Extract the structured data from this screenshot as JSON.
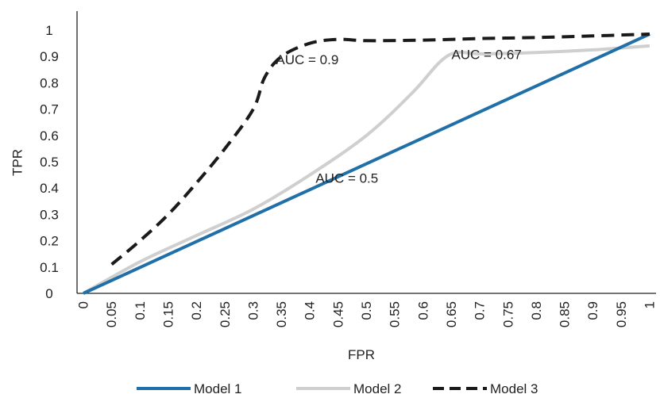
{
  "chart_data": {
    "type": "line",
    "title": "",
    "xlabel": "FPR",
    "ylabel": "TPR",
    "x_ticks": [
      "0",
      "0.05",
      "0.1",
      "0.15",
      "0.2",
      "0.25",
      "0.3",
      "0.35",
      "0.4",
      "0.45",
      "0.5",
      "0.55",
      "0.6",
      "0.65",
      "0.7",
      "0.75",
      "0.8",
      "0.85",
      "0.9",
      "0.95",
      "1"
    ],
    "y_ticks": [
      "0",
      "0.1",
      "0.2",
      "0.3",
      "0.4",
      "0.5",
      "0.6",
      "0.7",
      "0.8",
      "0.9",
      "1"
    ],
    "xlim": [
      0,
      1
    ],
    "ylim": [
      0,
      1
    ],
    "grid": false,
    "legend_position": "bottom",
    "series": [
      {
        "name": "Model 1",
        "color": "#1f6fa8",
        "style": "solid",
        "points": [
          [
            0,
            0
          ],
          [
            1,
            0.985
          ]
        ]
      },
      {
        "name": "Model 2",
        "color": "#cfcfcf",
        "style": "solid",
        "points": [
          [
            0,
            0
          ],
          [
            0.1,
            0.12
          ],
          [
            0.2,
            0.22
          ],
          [
            0.3,
            0.32
          ],
          [
            0.4,
            0.45
          ],
          [
            0.5,
            0.6
          ],
          [
            0.58,
            0.76
          ],
          [
            0.63,
            0.88
          ],
          [
            0.66,
            0.915
          ],
          [
            0.7,
            0.91
          ],
          [
            0.8,
            0.915
          ],
          [
            0.9,
            0.925
          ],
          [
            1,
            0.94
          ]
        ]
      },
      {
        "name": "Model 3",
        "color": "#1a1a1a",
        "style": "dashed",
        "points": [
          [
            0.05,
            0.11
          ],
          [
            0.1,
            0.2
          ],
          [
            0.15,
            0.3
          ],
          [
            0.2,
            0.42
          ],
          [
            0.25,
            0.55
          ],
          [
            0.3,
            0.7
          ],
          [
            0.32,
            0.82
          ],
          [
            0.35,
            0.9
          ],
          [
            0.4,
            0.95
          ],
          [
            0.45,
            0.965
          ],
          [
            0.5,
            0.96
          ],
          [
            0.6,
            0.962
          ],
          [
            0.7,
            0.968
          ],
          [
            0.8,
            0.972
          ],
          [
            0.9,
            0.978
          ],
          [
            1,
            0.985
          ]
        ]
      }
    ],
    "annotations": [
      {
        "text": "AUC = 0.9",
        "x": 0.34,
        "y": 0.87
      },
      {
        "text": "AUC = 0.67",
        "x": 0.65,
        "y": 0.89
      },
      {
        "text": "AUC = 0.5",
        "x": 0.41,
        "y": 0.42
      }
    ]
  }
}
